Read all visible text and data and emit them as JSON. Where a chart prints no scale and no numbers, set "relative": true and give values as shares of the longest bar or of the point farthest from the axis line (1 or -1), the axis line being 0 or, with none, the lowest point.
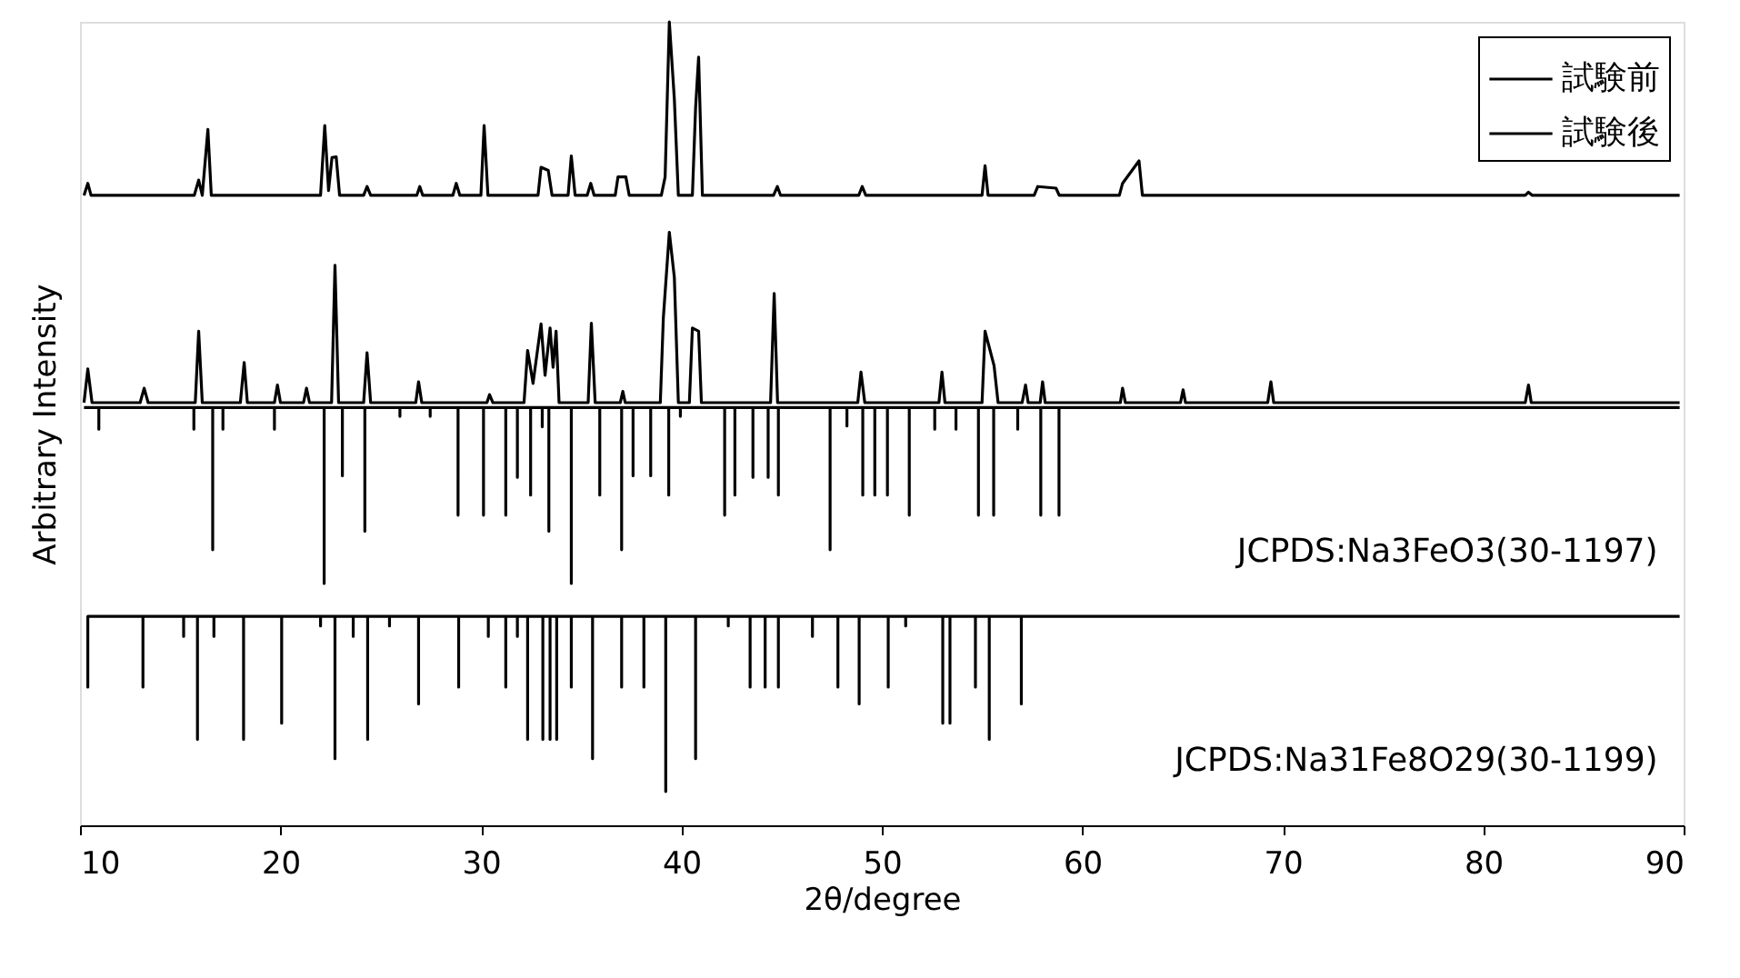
{
  "chart_data": {
    "type": "line",
    "relative": true,
    "xlabel": "2θ/degree",
    "ylabel": "Arbitrary Intensity",
    "xlim": [
      10,
      90
    ],
    "xticks": [
      10,
      20,
      30,
      40,
      50,
      60,
      70,
      80,
      90
    ],
    "grid": false,
    "legend": "top right",
    "marker": "none",
    "line_style": "solid",
    "series": [
      {
        "name": "試験前",
        "color": "#000000",
        "x": [
          10.2,
          10.39,
          10.55,
          15.7,
          15.92,
          16.1,
          16.38,
          16.55,
          22.0,
          22.21,
          22.4,
          22.57,
          22.78,
          22.95,
          24.15,
          24.32,
          24.5,
          26.8,
          26.95,
          27.1,
          28.6,
          28.77,
          28.95,
          30.0,
          30.16,
          30.35,
          32.85,
          33.0,
          33.36,
          33.55,
          34.35,
          34.51,
          34.7,
          35.3,
          35.48,
          35.65,
          36.7,
          36.84,
          37.23,
          37.4,
          39.0,
          39.19,
          39.4,
          39.65,
          39.85,
          40.55,
          40.71,
          40.86,
          41.05,
          44.6,
          44.79,
          44.95,
          48.85,
          49.02,
          49.2,
          55.0,
          55.15,
          55.3,
          57.6,
          57.78,
          58.69,
          58.85,
          61.85,
          62.01,
          62.83,
          63.0,
          82.1,
          82.26,
          82.45,
          89.8
        ],
        "values": [
          0.784,
          0.799,
          0.784,
          0.784,
          0.803,
          0.784,
          0.866,
          0.784,
          0.784,
          0.871,
          0.79,
          0.831,
          0.832,
          0.784,
          0.784,
          0.795,
          0.784,
          0.784,
          0.795,
          0.784,
          0.784,
          0.799,
          0.784,
          0.784,
          0.871,
          0.784,
          0.784,
          0.819,
          0.815,
          0.784,
          0.784,
          0.833,
          0.784,
          0.784,
          0.799,
          0.784,
          0.784,
          0.807,
          0.807,
          0.784,
          0.784,
          0.807,
          1.0,
          0.904,
          0.784,
          0.784,
          0.893,
          0.956,
          0.784,
          0.784,
          0.795,
          0.784,
          0.784,
          0.795,
          0.784,
          0.784,
          0.821,
          0.784,
          0.784,
          0.795,
          0.793,
          0.784,
          0.784,
          0.799,
          0.827,
          0.784,
          0.784,
          0.788,
          0.784,
          0.784
        ]
      },
      {
        "name": "試験後",
        "color": "#000000",
        "x": [
          10.2,
          10.39,
          10.6,
          13.0,
          13.2,
          13.4,
          15.75,
          15.92,
          16.1,
          18.0,
          18.19,
          18.35,
          19.7,
          19.85,
          20.0,
          21.15,
          21.3,
          21.45,
          22.55,
          22.72,
          22.9,
          24.15,
          24.32,
          24.5,
          26.75,
          26.89,
          27.05,
          30.3,
          30.43,
          30.6,
          32.15,
          32.33,
          32.6,
          33.0,
          33.2,
          33.45,
          33.6,
          33.75,
          33.9,
          35.35,
          35.51,
          35.7,
          36.95,
          37.08,
          37.2,
          38.95,
          39.1,
          39.4,
          39.65,
          39.85,
          40.4,
          40.55,
          40.86,
          41.0,
          44.45,
          44.63,
          44.8,
          48.8,
          48.96,
          49.15,
          52.85,
          53.0,
          53.15,
          55.0,
          55.15,
          55.6,
          55.8,
          57.0,
          57.17,
          57.3,
          57.9,
          58.02,
          58.15,
          61.9,
          62.01,
          62.15,
          64.9,
          65.03,
          65.15,
          69.25,
          69.41,
          69.55,
          82.1,
          82.26,
          82.4,
          89.8
        ],
        "values": [
          0.526,
          0.568,
          0.526,
          0.526,
          0.544,
          0.526,
          0.526,
          0.615,
          0.526,
          0.526,
          0.576,
          0.526,
          0.526,
          0.548,
          0.526,
          0.526,
          0.544,
          0.526,
          0.526,
          0.697,
          0.526,
          0.526,
          0.588,
          0.526,
          0.526,
          0.552,
          0.526,
          0.526,
          0.536,
          0.526,
          0.526,
          0.591,
          0.55,
          0.624,
          0.56,
          0.619,
          0.57,
          0.615,
          0.526,
          0.526,
          0.625,
          0.526,
          0.526,
          0.54,
          0.526,
          0.526,
          0.631,
          0.738,
          0.682,
          0.526,
          0.526,
          0.619,
          0.615,
          0.526,
          0.526,
          0.662,
          0.526,
          0.526,
          0.564,
          0.526,
          0.526,
          0.564,
          0.526,
          0.526,
          0.615,
          0.572,
          0.526,
          0.526,
          0.548,
          0.526,
          0.526,
          0.552,
          0.526,
          0.526,
          0.544,
          0.526,
          0.526,
          0.542,
          0.526,
          0.526,
          0.552,
          0.526,
          0.526,
          0.548,
          0.526,
          0.526
        ]
      },
      {
        "color": "#000000",
        "x": [
          10.2,
          10.94,
          10.94,
          10.94,
          15.68,
          15.68,
          15.68,
          16.62,
          16.62,
          16.62,
          17.13,
          17.13,
          17.13,
          19.7,
          19.7,
          19.7,
          22.18,
          22.18,
          22.18,
          23.09,
          23.09,
          23.09,
          24.21,
          24.21,
          24.21,
          25.96,
          25.96,
          25.96,
          27.47,
          27.47,
          27.47,
          28.86,
          28.86,
          28.86,
          30.13,
          30.13,
          30.13,
          31.24,
          31.24,
          31.24,
          31.82,
          31.82,
          31.82,
          32.48,
          32.48,
          32.48,
          33.06,
          33.06,
          33.06,
          33.39,
          33.39,
          33.39,
          34.51,
          34.51,
          34.51,
          35.93,
          35.93,
          35.93,
          37.02,
          37.02,
          37.02,
          37.59,
          37.59,
          37.59,
          38.47,
          38.47,
          38.47,
          39.37,
          39.37,
          39.37,
          39.95,
          39.95,
          39.95,
          42.16,
          42.16,
          42.16,
          42.67,
          42.67,
          42.67,
          43.57,
          43.57,
          43.57,
          44.33,
          44.33,
          44.33,
          44.84,
          44.84,
          44.84,
          47.42,
          47.42,
          47.42,
          48.26,
          48.26,
          48.26,
          49.05,
          49.05,
          49.05,
          49.65,
          49.65,
          49.65,
          50.28,
          50.28,
          50.28,
          51.37,
          51.37,
          51.37,
          52.64,
          52.64,
          52.64,
          53.7,
          53.7,
          53.7,
          54.82,
          54.82,
          54.82,
          55.58,
          55.58,
          55.58,
          56.78,
          56.78,
          56.78,
          57.93,
          57.93,
          57.93,
          58.84,
          58.84,
          58.84,
          89.8
        ],
        "values": [
          0.52,
          0.52,
          0.493,
          0.52,
          0.52,
          0.493,
          0.52,
          0.52,
          0.343,
          0.52,
          0.52,
          0.493,
          0.52,
          0.52,
          0.493,
          0.52,
          0.52,
          0.301,
          0.52,
          0.52,
          0.435,
          0.52,
          0.52,
          0.366,
          0.52,
          0.52,
          0.509,
          0.52,
          0.52,
          0.509,
          0.52,
          0.52,
          0.386,
          0.52,
          0.52,
          0.386,
          0.52,
          0.52,
          0.386,
          0.52,
          0.52,
          0.433,
          0.52,
          0.52,
          0.411,
          0.52,
          0.52,
          0.496,
          0.52,
          0.52,
          0.366,
          0.52,
          0.52,
          0.301,
          0.52,
          0.52,
          0.411,
          0.52,
          0.52,
          0.343,
          0.52,
          0.52,
          0.435,
          0.52,
          0.52,
          0.435,
          0.52,
          0.52,
          0.411,
          0.52,
          0.52,
          0.509,
          0.52,
          0.52,
          0.386,
          0.52,
          0.52,
          0.411,
          0.52,
          0.52,
          0.433,
          0.52,
          0.52,
          0.433,
          0.52,
          0.52,
          0.411,
          0.52,
          0.52,
          0.343,
          0.52,
          0.52,
          0.497,
          0.52,
          0.52,
          0.411,
          0.52,
          0.52,
          0.411,
          0.52,
          0.52,
          0.411,
          0.52,
          0.52,
          0.386,
          0.52,
          0.52,
          0.493,
          0.52,
          0.52,
          0.493,
          0.52,
          0.52,
          0.386,
          0.52,
          0.52,
          0.386,
          0.52,
          0.52,
          0.493,
          0.52,
          0.52,
          0.386,
          0.52,
          0.52,
          0.386,
          0.52,
          0.52
        ]
      },
      {
        "color": "#000000",
        "x": [
          10.39,
          10.39,
          10.39,
          13.14,
          13.14,
          13.14,
          15.17,
          15.17,
          15.17,
          15.86,
          15.86,
          15.86,
          16.68,
          16.68,
          16.68,
          18.16,
          18.16,
          18.16,
          20.06,
          20.06,
          20.06,
          22.0,
          22.0,
          22.0,
          22.72,
          22.72,
          22.72,
          23.63,
          23.63,
          23.63,
          24.35,
          24.35,
          24.35,
          25.44,
          25.44,
          25.44,
          26.89,
          26.89,
          26.89,
          28.89,
          28.89,
          28.89,
          30.37,
          30.37,
          30.37,
          31.24,
          31.24,
          31.24,
          31.82,
          31.82,
          31.82,
          32.33,
          32.33,
          32.33,
          33.09,
          33.09,
          33.09,
          33.45,
          33.45,
          33.45,
          33.78,
          33.78,
          33.78,
          34.51,
          34.51,
          34.51,
          35.57,
          35.57,
          35.57,
          37.02,
          37.02,
          37.02,
          38.13,
          38.13,
          38.13,
          39.22,
          39.22,
          39.22,
          40.71,
          40.71,
          40.71,
          42.34,
          42.34,
          42.34,
          43.43,
          43.43,
          43.43,
          44.18,
          44.18,
          44.18,
          44.84,
          44.84,
          44.84,
          46.54,
          46.54,
          46.54,
          47.81,
          47.81,
          47.81,
          48.87,
          48.87,
          48.87,
          50.32,
          50.32,
          50.32,
          51.19,
          51.19,
          51.19,
          53.04,
          53.04,
          53.04,
          53.4,
          53.4,
          53.4,
          54.67,
          54.67,
          54.67,
          55.36,
          55.36,
          55.36,
          56.96,
          56.96,
          56.96,
          89.8
        ],
        "values": [
          0.26,
          0.172,
          0.26,
          0.26,
          0.172,
          0.26,
          0.26,
          0.235,
          0.26,
          0.26,
          0.107,
          0.26,
          0.26,
          0.235,
          0.26,
          0.26,
          0.107,
          0.26,
          0.26,
          0.127,
          0.26,
          0.26,
          0.248,
          0.26,
          0.26,
          0.083,
          0.26,
          0.26,
          0.235,
          0.26,
          0.26,
          0.107,
          0.26,
          0.26,
          0.248,
          0.26,
          0.26,
          0.151,
          0.26,
          0.26,
          0.172,
          0.26,
          0.26,
          0.235,
          0.26,
          0.26,
          0.172,
          0.26,
          0.26,
          0.235,
          0.26,
          0.26,
          0.107,
          0.26,
          0.26,
          0.107,
          0.26,
          0.26,
          0.107,
          0.26,
          0.26,
          0.107,
          0.26,
          0.26,
          0.172,
          0.26,
          0.26,
          0.083,
          0.26,
          0.26,
          0.172,
          0.26,
          0.26,
          0.172,
          0.26,
          0.26,
          0.042,
          0.26,
          0.26,
          0.083,
          0.26,
          0.26,
          0.248,
          0.26,
          0.26,
          0.172,
          0.26,
          0.26,
          0.172,
          0.26,
          0.26,
          0.172,
          0.26,
          0.26,
          0.235,
          0.26,
          0.26,
          0.172,
          0.26,
          0.26,
          0.151,
          0.26,
          0.26,
          0.172,
          0.26,
          0.26,
          0.248,
          0.26,
          0.26,
          0.127,
          0.26,
          0.26,
          0.127,
          0.26,
          0.26,
          0.172,
          0.26,
          0.26,
          0.107,
          0.26,
          0.26,
          0.151,
          0.26,
          0.26
        ]
      }
    ],
    "annotations": [
      "JCPDS:Na3FeO3(30-1197)",
      "JCPDS:Na31Fe8O29(30-1199)"
    ]
  }
}
